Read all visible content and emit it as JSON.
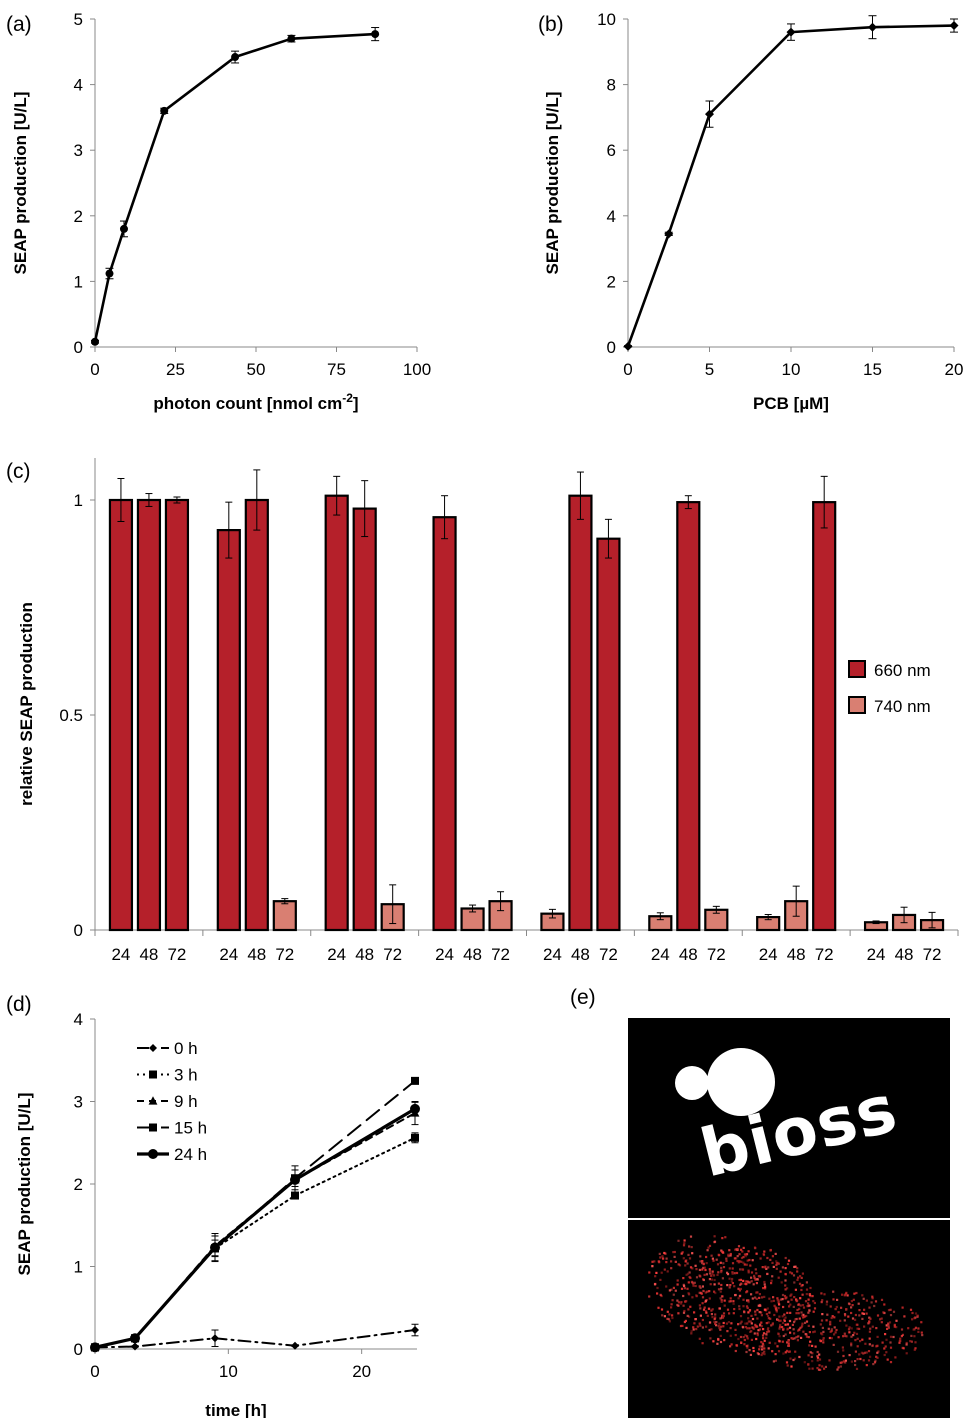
{
  "panels": {
    "a": "(a)",
    "b": "(b)",
    "c": "(c)",
    "d": "(d)",
    "e": "(e)"
  },
  "logo_text": "bioss",
  "chart_data": [
    {
      "id": "a",
      "type": "line",
      "xlabel": "photon count [nmol cm",
      "xlabel_sup": "-2",
      "xlabel_end": "]",
      "ylabel": "SEAP production [U/L]",
      "xlim": [
        0,
        100
      ],
      "ylim": [
        0,
        5
      ],
      "xticks": [
        0,
        25,
        50,
        75,
        100
      ],
      "yticks": [
        0,
        1,
        2,
        3,
        4,
        5
      ],
      "x": [
        0,
        4.5,
        9,
        21.5,
        43.5,
        61,
        87
      ],
      "y": [
        0.08,
        1.12,
        1.8,
        3.6,
        4.42,
        4.7,
        4.77
      ],
      "err": [
        0.02,
        0.08,
        0.12,
        0.04,
        0.09,
        0.05,
        0.1
      ],
      "marker": "circle"
    },
    {
      "id": "b",
      "type": "line",
      "xlabel": "PCB [µM]",
      "ylabel": "SEAP production [U/L]",
      "xlim": [
        0,
        20
      ],
      "ylim": [
        0,
        10
      ],
      "xticks": [
        0,
        5,
        10,
        15,
        20
      ],
      "yticks": [
        0,
        2,
        4,
        6,
        8,
        10
      ],
      "x": [
        0,
        2.5,
        5,
        10,
        15,
        20
      ],
      "y": [
        0.02,
        3.45,
        7.1,
        9.6,
        9.75,
        9.8
      ],
      "err": [
        0.02,
        0.05,
        0.4,
        0.25,
        0.35,
        0.2
      ],
      "marker": "diamond"
    },
    {
      "id": "c",
      "type": "bar",
      "ylabel": "relative SEAP production",
      "ylim": [
        0,
        1.1
      ],
      "yticks": [
        "0",
        "0.5",
        "1"
      ],
      "yticks_values": [
        0,
        0.5,
        1
      ],
      "colors": {
        "660 nm": "#b5202a",
        "740 nm": "#d97f72"
      },
      "legend": [
        "660 nm",
        "740 nm"
      ],
      "legend_position": "right",
      "groups": [
        {
          "labels": [
            "24",
            "48",
            "72"
          ],
          "values": [
            1.0,
            1.0,
            1.0
          ],
          "err": [
            0.05,
            0.015,
            0.007
          ],
          "series": [
            "660 nm",
            "660 nm",
            "660 nm"
          ]
        },
        {
          "labels": [
            "24",
            "48",
            "72"
          ],
          "values": [
            0.93,
            1.0,
            0.067
          ],
          "err": [
            0.065,
            0.07,
            0.006
          ],
          "series": [
            "660 nm",
            "660 nm",
            "740 nm"
          ]
        },
        {
          "labels": [
            "24",
            "48",
            "72"
          ],
          "values": [
            1.01,
            0.98,
            0.06
          ],
          "err": [
            0.045,
            0.065,
            0.045
          ],
          "series": [
            "660 nm",
            "660 nm",
            "740 nm"
          ]
        },
        {
          "labels": [
            "24",
            "48",
            "72"
          ],
          "values": [
            0.96,
            0.05,
            0.067
          ],
          "err": [
            0.05,
            0.008,
            0.022
          ],
          "series": [
            "660 nm",
            "740 nm",
            "740 nm"
          ]
        },
        {
          "labels": [
            "24",
            "48",
            "72"
          ],
          "values": [
            0.038,
            1.01,
            0.91
          ],
          "err": [
            0.01,
            0.055,
            0.045
          ],
          "series": [
            "740 nm",
            "660 nm",
            "660 nm"
          ]
        },
        {
          "labels": [
            "24",
            "48",
            "72"
          ],
          "values": [
            0.032,
            0.995,
            0.047
          ],
          "err": [
            0.008,
            0.015,
            0.008
          ],
          "series": [
            "740 nm",
            "660 nm",
            "740 nm"
          ]
        },
        {
          "labels": [
            "24",
            "48",
            "72"
          ],
          "values": [
            0.03,
            0.067,
            0.995
          ],
          "err": [
            0.006,
            0.035,
            0.06
          ],
          "series": [
            "740 nm",
            "740 nm",
            "660 nm"
          ]
        },
        {
          "labels": [
            "24",
            "48",
            "72"
          ],
          "values": [
            0.018,
            0.035,
            0.023
          ],
          "err": [
            0.003,
            0.018,
            0.018
          ],
          "series": [
            "740 nm",
            "740 nm",
            "740 nm"
          ]
        }
      ]
    },
    {
      "id": "d",
      "type": "line",
      "xlabel": "time [h]",
      "ylabel": "SEAP production [U/L]",
      "xlim": [
        0,
        24
      ],
      "ylim": [
        0,
        4
      ],
      "xticks": [
        0,
        10,
        20
      ],
      "yticks": [
        0,
        1,
        2,
        3,
        4
      ],
      "legend_position": "top-left",
      "series": [
        {
          "name": "0 h",
          "dash": "dashdot",
          "marker": "diamond",
          "width": 2,
          "x": [
            0,
            3,
            9,
            15,
            24
          ],
          "y": [
            0.02,
            0.03,
            0.13,
            0.04,
            0.23
          ],
          "err": [
            0.01,
            0.01,
            0.1,
            0.01,
            0.07
          ]
        },
        {
          "name": "3 h",
          "dash": "dotted",
          "marker": "square",
          "width": 2,
          "x": [
            0,
            3,
            9,
            15,
            24
          ],
          "y": [
            0.02,
            0.13,
            1.22,
            1.86,
            2.56
          ],
          "err": [
            0.01,
            0.02,
            0.1,
            0.03,
            0.06
          ]
        },
        {
          "name": "9 h",
          "dash": "dashed-short",
          "marker": "triangle",
          "width": 2,
          "x": [
            0,
            3,
            9,
            15,
            24
          ],
          "y": [
            0.02,
            0.13,
            1.25,
            2.05,
            2.86
          ],
          "err": [
            0.01,
            0.02,
            0.12,
            0.12,
            0.14
          ]
        },
        {
          "name": "15 h",
          "dash": "dashed-long",
          "marker": "square",
          "width": 2,
          "x": [
            0,
            3,
            9,
            15,
            24
          ],
          "y": [
            0.02,
            0.13,
            1.22,
            2.07,
            3.25
          ],
          "err": [
            0.01,
            0.02,
            0.15,
            0.1,
            0.02
          ]
        },
        {
          "name": "24 h",
          "dash": "solid",
          "marker": "circle",
          "width": 3.2,
          "x": [
            0,
            3,
            9,
            15,
            24
          ],
          "y": [
            0.02,
            0.13,
            1.23,
            2.05,
            2.91
          ],
          "err": [
            0.01,
            0.02,
            0.17,
            0.17,
            0.08
          ]
        }
      ]
    }
  ]
}
